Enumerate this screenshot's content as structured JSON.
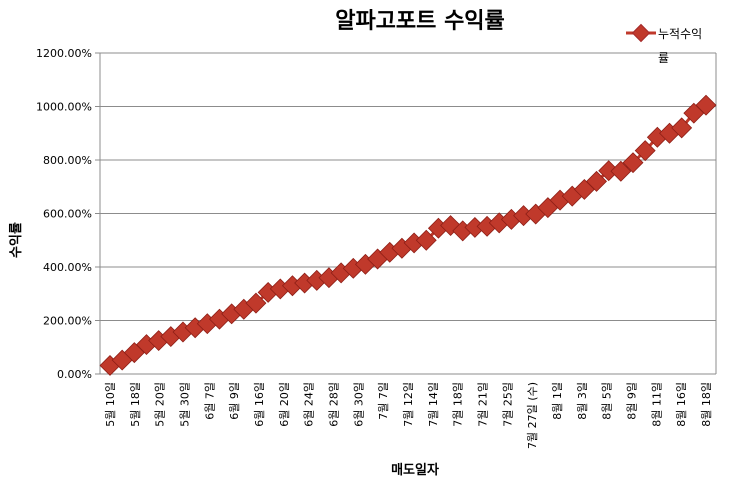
{
  "chart_data": {
    "type": "line",
    "title": "알파고포트 수익률",
    "xlabel": "매도일자",
    "ylabel": "수익률",
    "ylim": [
      0,
      1200
    ],
    "yticks": [
      0,
      200,
      400,
      600,
      800,
      1000,
      1200
    ],
    "ytick_labels": [
      "0.00%",
      "200.00%",
      "400.00%",
      "600.00%",
      "800.00%",
      "1000.00%",
      "1200.00%"
    ],
    "grid": true,
    "legend_position": "top-right",
    "x_labels": [
      "5월 10일",
      "5월 18일",
      "5월 20일",
      "5월 30일",
      "6월 7일",
      "6월 9일",
      "6월 16일",
      "6월 20일",
      "6월 24일",
      "6월 28일",
      "6월 30일",
      "7월 7일",
      "7월 12일",
      "7월 14일",
      "7월 18일",
      "7월 21일",
      "7월 25일",
      "7월 27일 (수)",
      "8월 1일",
      "8월 3일",
      "8월 5일",
      "8월 9일",
      "8월 11일",
      "8월 16일",
      "8월 18일"
    ],
    "series": [
      {
        "name": "누적수익률",
        "color": "#c0392b",
        "values": [
          32,
          52,
          80,
          110,
          125,
          140,
          157,
          173,
          188,
          205,
          225,
          242,
          265,
          305,
          318,
          330,
          340,
          350,
          360,
          378,
          395,
          410,
          430,
          455,
          470,
          490,
          500,
          545,
          555,
          535,
          548,
          552,
          565,
          578,
          592,
          598,
          622,
          650,
          665,
          690,
          720,
          760,
          758,
          790,
          835,
          885,
          900,
          920,
          975,
          1005
        ]
      }
    ]
  }
}
